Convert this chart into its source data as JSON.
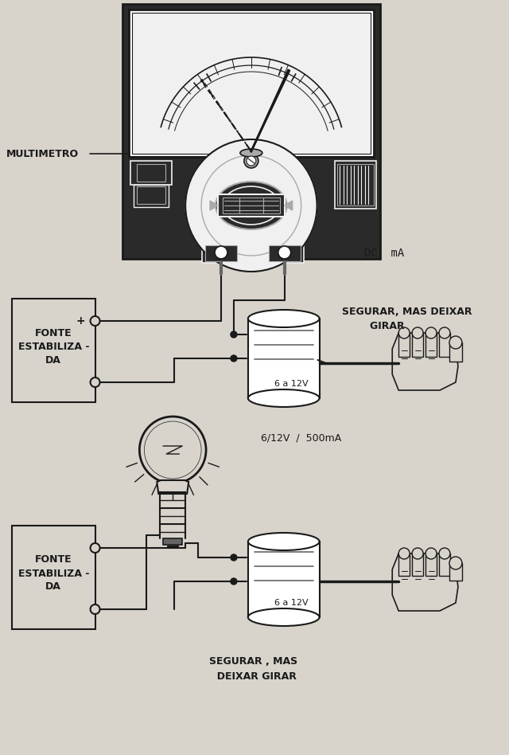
{
  "bg_color": "#d8d4cc",
  "line_color": "#1a1a1a",
  "dark_fill": "#2a2a2a",
  "medium_fill": "#666666",
  "light_fill": "#aaaaaa",
  "white_fill": "#f0f0f0",
  "true_white": "#ffffff",
  "label_multimetro": "MULTIMETRO",
  "label_dc_ma": "DC  mA",
  "label_segurar1": "SEGURAR, MAS DEIXAR\n        GIRAR",
  "label_fonte1": "FONTE\nESTABILIZA -\nDA",
  "label_6a12v_top": "6 a 12V",
  "label_6_12v_500ma": "6/12V  /  500mA",
  "label_fonte2": "FONTE\nESTABILIZA -\nDA",
  "label_6a12v_bot": "6 a 12V",
  "label_segurar2": "SEGURAR , MAS\n  DEIXAR GIRAR",
  "plus_label": "+",
  "font_size_label": 9,
  "font_size_small": 8,
  "font_size_title": 9
}
